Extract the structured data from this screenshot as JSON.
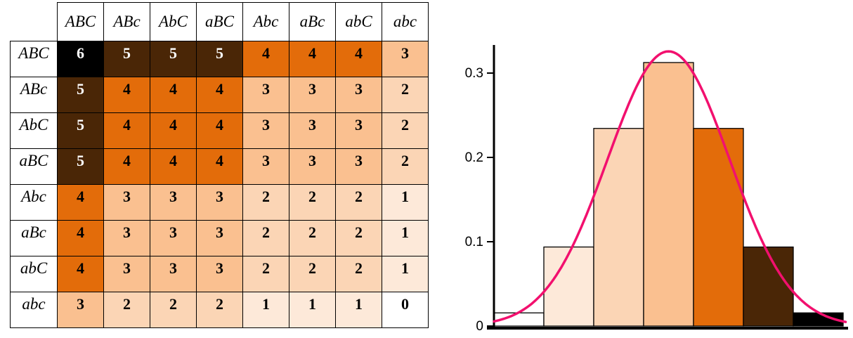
{
  "figure": {
    "description": "Trihybrid cross dominant-allele count matrix with binomial histogram and normal-approximation curve"
  },
  "chart_data": [
    {
      "type": "heatmap",
      "title": "",
      "corner_label": "",
      "columns": [
        "ABC",
        "ABc",
        "AbC",
        "aBC",
        "Abc",
        "aBc",
        "abC",
        "abc"
      ],
      "rows": [
        "ABC",
        "ABc",
        "AbC",
        "aBC",
        "Abc",
        "aBc",
        "abC",
        "abc"
      ],
      "values": [
        [
          6,
          5,
          5,
          5,
          4,
          4,
          4,
          3
        ],
        [
          5,
          4,
          4,
          4,
          3,
          3,
          3,
          2
        ],
        [
          5,
          4,
          4,
          4,
          3,
          3,
          3,
          2
        ],
        [
          5,
          4,
          4,
          4,
          3,
          3,
          3,
          2
        ],
        [
          4,
          3,
          3,
          3,
          2,
          2,
          2,
          1
        ],
        [
          4,
          3,
          3,
          3,
          2,
          2,
          2,
          1
        ],
        [
          4,
          3,
          3,
          3,
          2,
          2,
          2,
          1
        ],
        [
          3,
          2,
          2,
          2,
          1,
          1,
          1,
          0
        ]
      ],
      "value_fill_colors": {
        "0": "#FFFFFF",
        "1": "#FDE9D9",
        "2": "#FBD5B5",
        "3": "#FAC090",
        "4": "#E36C0A",
        "5": "#4A2606",
        "6": "#000000"
      },
      "value_text_colors": {
        "0": "#000000",
        "1": "#000000",
        "2": "#000000",
        "3": "#000000",
        "4": "#000000",
        "5": "#FFFFFF",
        "6": "#FFFFFF"
      }
    },
    {
      "type": "bar",
      "title": "",
      "xlabel": "",
      "ylabel": "",
      "x": [
        0,
        1,
        2,
        3,
        4,
        5,
        6
      ],
      "values": [
        0.015625,
        0.09375,
        0.234375,
        0.3125,
        0.234375,
        0.09375,
        0.015625
      ],
      "bar_colors": [
        "#FFFFFF",
        "#FDE9D9",
        "#FBD5B5",
        "#FAC090",
        "#E36C0A",
        "#4A2606",
        "#000000"
      ],
      "bar_outline_color": "#000000",
      "xlim": [
        -0.5,
        6.5
      ],
      "ylim": [
        0,
        0.33
      ],
      "yticks": [
        0,
        0.1,
        0.2,
        0.3
      ],
      "ytick_labels": [
        "0",
        "0.1",
        "0.2",
        "0.3"
      ],
      "xtick_labels": [],
      "grid": false,
      "legend": null,
      "overlay_curve": {
        "distribution": "normal",
        "mean": 3,
        "sd": 1.2247,
        "x_range": [
          -0.5,
          6.55
        ],
        "color": "#F2106E"
      },
      "axis_color": "#000000"
    }
  ]
}
